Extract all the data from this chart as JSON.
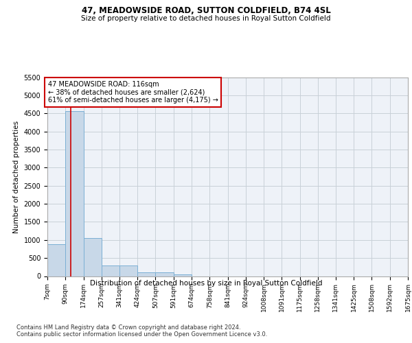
{
  "title": "47, MEADOWSIDE ROAD, SUTTON COLDFIELD, B74 4SL",
  "subtitle": "Size of property relative to detached houses in Royal Sutton Coldfield",
  "xlabel": "Distribution of detached houses by size in Royal Sutton Coldfield",
  "ylabel": "Number of detached properties",
  "footnote1": "Contains HM Land Registry data © Crown copyright and database right 2024.",
  "footnote2": "Contains public sector information licensed under the Open Government Licence v3.0.",
  "bar_edges": [
    7,
    90,
    174,
    257,
    341,
    424,
    507,
    591,
    674,
    758,
    841,
    924,
    1008,
    1091,
    1175,
    1258,
    1341,
    1425,
    1508,
    1592,
    1675
  ],
  "bar_heights": [
    880,
    4560,
    1060,
    290,
    285,
    100,
    95,
    50,
    0,
    0,
    0,
    0,
    0,
    0,
    0,
    0,
    0,
    0,
    0,
    0
  ],
  "bar_color": "#c8d8e8",
  "bar_edge_color": "#7bafd4",
  "grid_color": "#c8d0d8",
  "background_color": "#eef2f8",
  "property_line_x": 116,
  "property_line_color": "#cc0000",
  "annotation_line1": "47 MEADOWSIDE ROAD: 116sqm",
  "annotation_line2": "← 38% of detached houses are smaller (2,624)",
  "annotation_line3": "61% of semi-detached houses are larger (4,175) →",
  "annotation_box_color": "#cc0000",
  "ylim": [
    0,
    5500
  ],
  "yticks": [
    0,
    500,
    1000,
    1500,
    2000,
    2500,
    3000,
    3500,
    4000,
    4500,
    5000,
    5500
  ],
  "tick_labels": [
    "7sqm",
    "90sqm",
    "174sqm",
    "257sqm",
    "341sqm",
    "424sqm",
    "507sqm",
    "591sqm",
    "674sqm",
    "758sqm",
    "841sqm",
    "924sqm",
    "1008sqm",
    "1091sqm",
    "1175sqm",
    "1258sqm",
    "1341sqm",
    "1425sqm",
    "1508sqm",
    "1592sqm",
    "1675sqm"
  ]
}
